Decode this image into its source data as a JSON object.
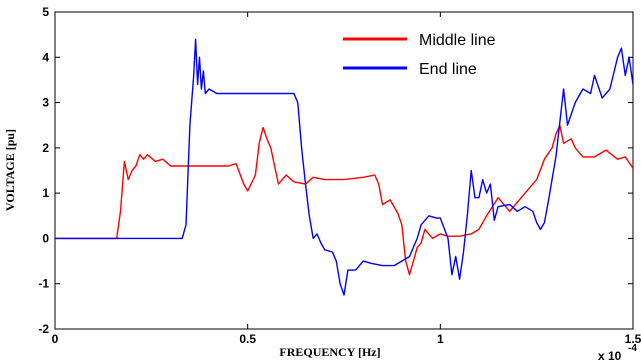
{
  "chart_data": {
    "type": "line",
    "xlabel": "FREQUENCY [Hz]",
    "ylabel": "VOLTAGE [pu]",
    "x_multiplier_label": "x 10",
    "x_multiplier_exponent": "-4",
    "xlim": [
      0,
      1.5
    ],
    "ylim": [
      -2,
      5
    ],
    "xticks": [
      0,
      0.5,
      1,
      1.5
    ],
    "xtick_labels": [
      "0",
      "0.5",
      "1",
      "1.5"
    ],
    "yticks": [
      -2,
      -1,
      0,
      1,
      2,
      3,
      4,
      5
    ],
    "ytick_labels": [
      "-2",
      "-1",
      "0",
      "1",
      "2",
      "3",
      "4",
      "5"
    ],
    "grid": false,
    "legend_position": "top-right",
    "series": [
      {
        "name": "Middle line",
        "color": "#ff0000",
        "points": [
          [
            0,
            0
          ],
          [
            0.16,
            0
          ],
          [
            0.17,
            0.6
          ],
          [
            0.18,
            1.7
          ],
          [
            0.19,
            1.3
          ],
          [
            0.2,
            1.5
          ],
          [
            0.21,
            1.6
          ],
          [
            0.22,
            1.85
          ],
          [
            0.23,
            1.75
          ],
          [
            0.24,
            1.85
          ],
          [
            0.26,
            1.7
          ],
          [
            0.28,
            1.75
          ],
          [
            0.3,
            1.6
          ],
          [
            0.35,
            1.6
          ],
          [
            0.4,
            1.6
          ],
          [
            0.45,
            1.6
          ],
          [
            0.47,
            1.65
          ],
          [
            0.49,
            1.2
          ],
          [
            0.5,
            1.05
          ],
          [
            0.52,
            1.4
          ],
          [
            0.53,
            2.1
          ],
          [
            0.54,
            2.45
          ],
          [
            0.55,
            2.2
          ],
          [
            0.56,
            2.0
          ],
          [
            0.57,
            1.6
          ],
          [
            0.58,
            1.2
          ],
          [
            0.6,
            1.4
          ],
          [
            0.62,
            1.25
          ],
          [
            0.65,
            1.2
          ],
          [
            0.67,
            1.35
          ],
          [
            0.7,
            1.3
          ],
          [
            0.75,
            1.3
          ],
          [
            0.8,
            1.35
          ],
          [
            0.83,
            1.4
          ],
          [
            0.84,
            1.2
          ],
          [
            0.85,
            0.75
          ],
          [
            0.87,
            0.85
          ],
          [
            0.89,
            0.55
          ],
          [
            0.9,
            0.3
          ],
          [
            0.91,
            -0.5
          ],
          [
            0.92,
            -0.8
          ],
          [
            0.93,
            -0.5
          ],
          [
            0.94,
            -0.2
          ],
          [
            0.95,
            -0.1
          ],
          [
            0.96,
            0.2
          ],
          [
            0.98,
            0.0
          ],
          [
            1.0,
            0.1
          ],
          [
            1.02,
            0.05
          ],
          [
            1.05,
            0.05
          ],
          [
            1.08,
            0.1
          ],
          [
            1.1,
            0.2
          ],
          [
            1.12,
            0.5
          ],
          [
            1.15,
            0.9
          ],
          [
            1.18,
            0.6
          ],
          [
            1.2,
            0.8
          ],
          [
            1.22,
            1.0
          ],
          [
            1.25,
            1.3
          ],
          [
            1.27,
            1.75
          ],
          [
            1.29,
            2.0
          ],
          [
            1.3,
            2.3
          ],
          [
            1.31,
            2.5
          ],
          [
            1.32,
            2.1
          ],
          [
            1.34,
            2.2
          ],
          [
            1.35,
            2.0
          ],
          [
            1.37,
            1.8
          ],
          [
            1.4,
            1.8
          ],
          [
            1.43,
            1.95
          ],
          [
            1.46,
            1.75
          ],
          [
            1.48,
            1.8
          ],
          [
            1.5,
            1.55
          ]
        ]
      },
      {
        "name": "End line",
        "color": "#0000ff",
        "points": [
          [
            0,
            0
          ],
          [
            0.33,
            0
          ],
          [
            0.34,
            0.3
          ],
          [
            0.35,
            2.5
          ],
          [
            0.36,
            3.6
          ],
          [
            0.365,
            4.4
          ],
          [
            0.37,
            3.4
          ],
          [
            0.375,
            4.0
          ],
          [
            0.38,
            3.3
          ],
          [
            0.385,
            3.7
          ],
          [
            0.39,
            3.2
          ],
          [
            0.4,
            3.3
          ],
          [
            0.42,
            3.2
          ],
          [
            0.45,
            3.2
          ],
          [
            0.5,
            3.2
          ],
          [
            0.55,
            3.2
          ],
          [
            0.6,
            3.2
          ],
          [
            0.62,
            3.2
          ],
          [
            0.63,
            3.0
          ],
          [
            0.64,
            2.0
          ],
          [
            0.65,
            1.2
          ],
          [
            0.66,
            0.5
          ],
          [
            0.67,
            0.0
          ],
          [
            0.68,
            0.1
          ],
          [
            0.69,
            -0.1
          ],
          [
            0.7,
            -0.25
          ],
          [
            0.72,
            -0.3
          ],
          [
            0.73,
            -0.5
          ],
          [
            0.74,
            -1.0
          ],
          [
            0.75,
            -1.25
          ],
          [
            0.76,
            -0.7
          ],
          [
            0.78,
            -0.7
          ],
          [
            0.8,
            -0.5
          ],
          [
            0.82,
            -0.55
          ],
          [
            0.85,
            -0.6
          ],
          [
            0.88,
            -0.6
          ],
          [
            0.9,
            -0.5
          ],
          [
            0.92,
            -0.4
          ],
          [
            0.94,
            0.0
          ],
          [
            0.95,
            0.3
          ],
          [
            0.97,
            0.5
          ],
          [
            0.99,
            0.45
          ],
          [
            1.0,
            0.45
          ],
          [
            1.02,
            0.0
          ],
          [
            1.03,
            -0.8
          ],
          [
            1.04,
            -0.4
          ],
          [
            1.05,
            -0.9
          ],
          [
            1.06,
            -0.3
          ],
          [
            1.07,
            0.5
          ],
          [
            1.08,
            1.5
          ],
          [
            1.09,
            0.9
          ],
          [
            1.1,
            0.9
          ],
          [
            1.11,
            1.3
          ],
          [
            1.12,
            1.0
          ],
          [
            1.13,
            1.2
          ],
          [
            1.14,
            0.4
          ],
          [
            1.15,
            0.7
          ],
          [
            1.18,
            0.75
          ],
          [
            1.2,
            0.6
          ],
          [
            1.22,
            0.7
          ],
          [
            1.24,
            0.6
          ],
          [
            1.25,
            0.35
          ],
          [
            1.26,
            0.2
          ],
          [
            1.27,
            0.35
          ],
          [
            1.28,
            0.8
          ],
          [
            1.3,
            1.8
          ],
          [
            1.32,
            3.3
          ],
          [
            1.33,
            2.5
          ],
          [
            1.35,
            3.0
          ],
          [
            1.37,
            3.3
          ],
          [
            1.39,
            3.2
          ],
          [
            1.4,
            3.6
          ],
          [
            1.42,
            3.1
          ],
          [
            1.44,
            3.3
          ],
          [
            1.46,
            4.0
          ],
          [
            1.47,
            4.2
          ],
          [
            1.48,
            3.6
          ],
          [
            1.49,
            4.0
          ],
          [
            1.5,
            3.4
          ]
        ]
      }
    ]
  }
}
